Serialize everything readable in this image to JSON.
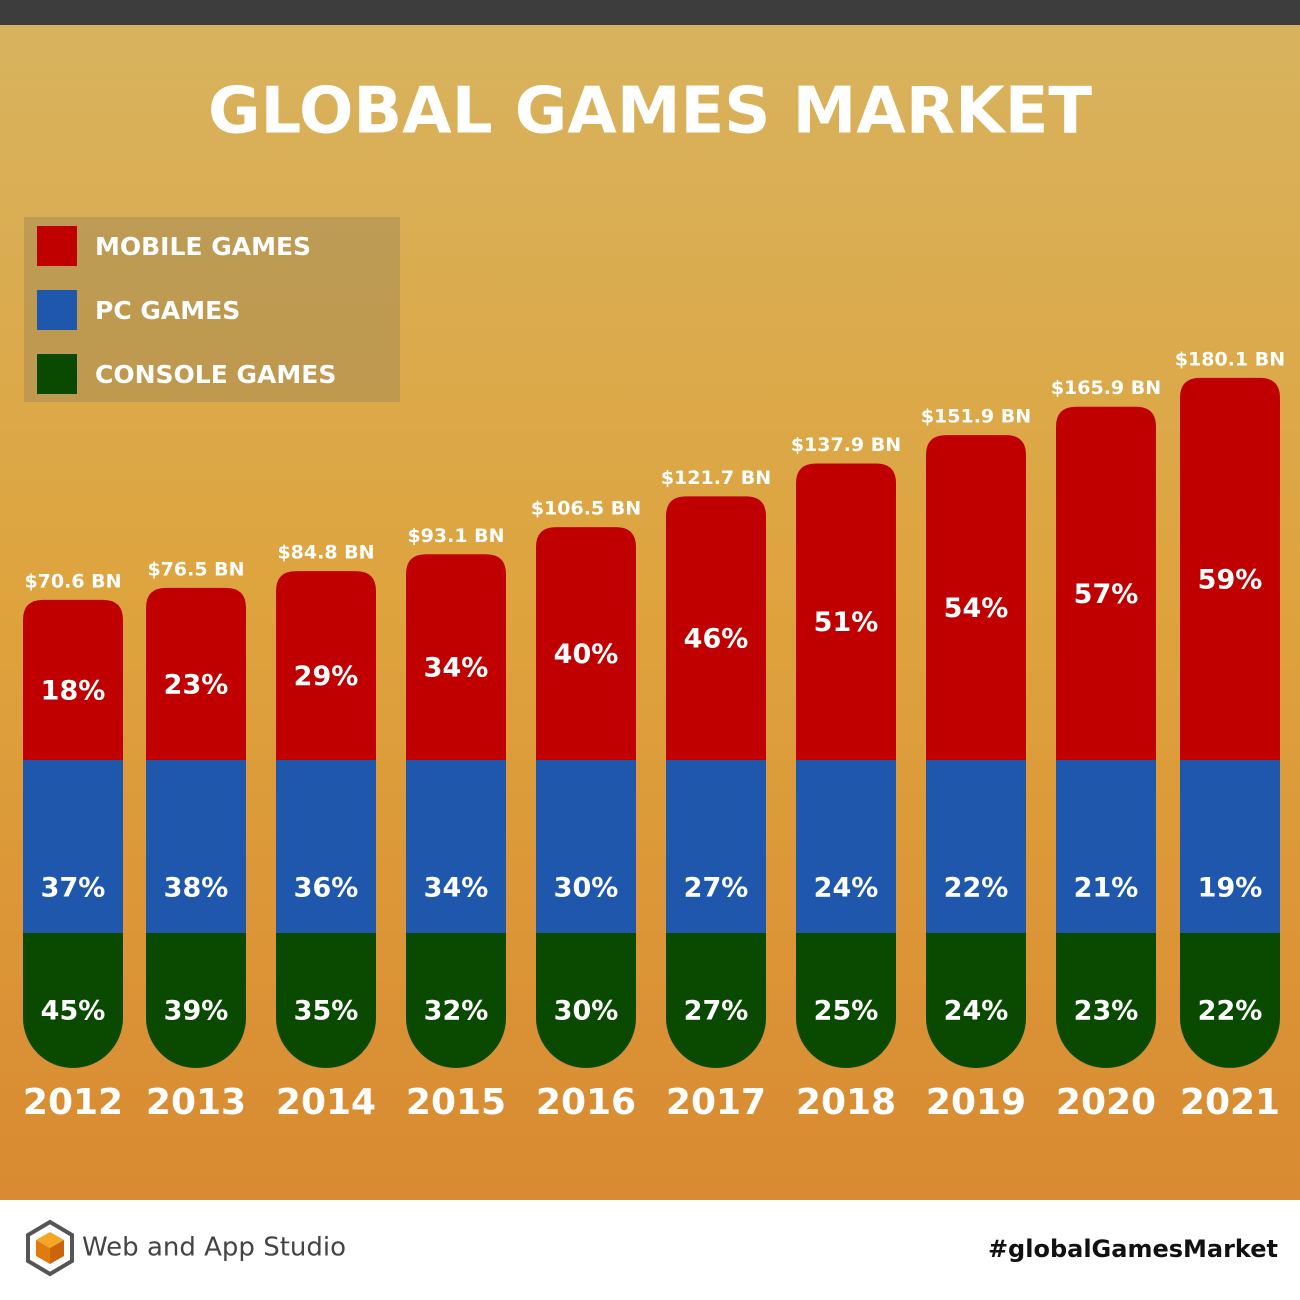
{
  "chart_data": {
    "type": "stacked_bar",
    "title": "GLOBAL GAMES MARKET",
    "categories": [
      "2012",
      "2013",
      "2014",
      "2015",
      "2016",
      "2017",
      "2018",
      "2019",
      "2020",
      "2021"
    ],
    "totals": {
      "values": [
        70.6,
        76.5,
        84.8,
        93.1,
        106.5,
        121.7,
        137.9,
        151.9,
        165.9,
        180.1
      ],
      "value_labels": [
        "$70.6 BN",
        "$76.5 BN",
        "$84.8 BN",
        "$93.1 BN",
        "$106.5 BN",
        "$121.7 BN",
        "$137.9 BN",
        "$151.9 BN",
        "$165.9 BN",
        "$180.1 BN"
      ]
    },
    "series": [
      {
        "name": "MOBILE GAMES",
        "color": "#c00000",
        "values": [
          18,
          23,
          29,
          34,
          40,
          46,
          51,
          54,
          57,
          59
        ],
        "value_labels": [
          "18%",
          "23%",
          "29%",
          "34%",
          "40%",
          "46%",
          "51%",
          "54%",
          "57%",
          "59%"
        ]
      },
      {
        "name": "PC GAMES",
        "color": "#1f57ad",
        "values": [
          37,
          38,
          36,
          34,
          30,
          27,
          24,
          22,
          21,
          19
        ],
        "value_labels": [
          "37%",
          "38%",
          "36%",
          "34%",
          "30%",
          "27%",
          "24%",
          "22%",
          "21%",
          "19%"
        ]
      },
      {
        "name": "CONSOLE GAMES",
        "color": "#0a4a00",
        "values": [
          45,
          39,
          35,
          32,
          30,
          27,
          25,
          24,
          23,
          22
        ],
        "value_labels": [
          "45%",
          "39%",
          "35%",
          "32%",
          "30%",
          "27%",
          "25%",
          "24%",
          "23%",
          "22%"
        ]
      }
    ]
  },
  "footer": {
    "brand": "Web and App Studio",
    "hashtag": "#globalGamesMarket"
  }
}
